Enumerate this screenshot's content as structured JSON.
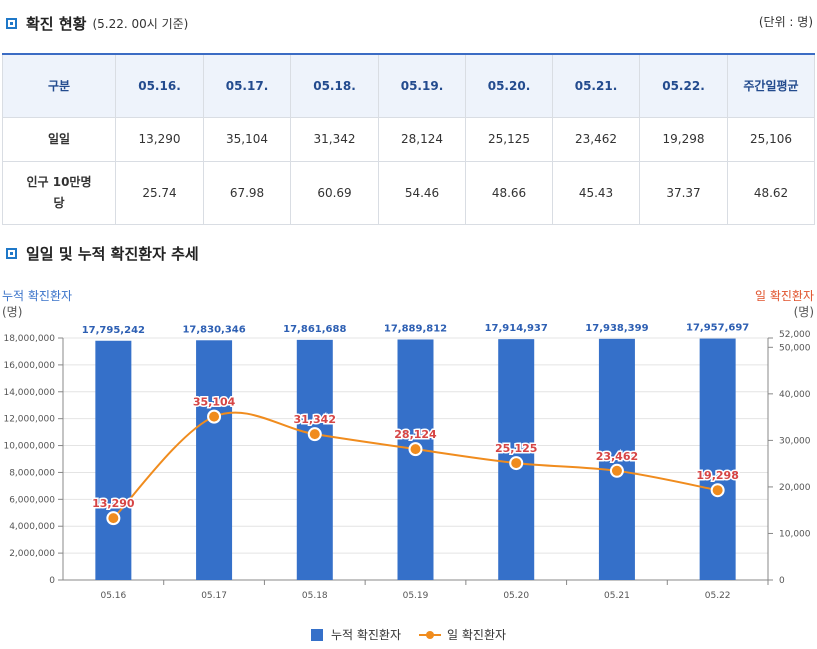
{
  "header": {
    "title": "확진 현황",
    "subtitle": "(5.22. 00시 기준)",
    "unit": "(단위 : 명)"
  },
  "table": {
    "columns": [
      "구분",
      "05.16.",
      "05.17.",
      "05.18.",
      "05.19.",
      "05.20.",
      "05.21.",
      "05.22.",
      "주간일평균"
    ],
    "rows": [
      {
        "label": "일일",
        "values": [
          "13,290",
          "35,104",
          "31,342",
          "28,124",
          "25,125",
          "23,462",
          "19,298",
          "25,106"
        ]
      },
      {
        "label": "인구 10만명당",
        "values": [
          "25.74",
          "67.98",
          "60.69",
          "54.46",
          "48.66",
          "45.43",
          "37.37",
          "48.62"
        ]
      }
    ]
  },
  "chart_section": {
    "title": "일일 및 누적 확진환자 추세"
  },
  "colors": {
    "bar": "#3570c9",
    "line": "#f08c1e",
    "left_axis_title": "#3a73c9",
    "right_axis_title": "#e0522b",
    "bar_label": "#2d5fb3",
    "line_label": "#d64545"
  },
  "chart_data": {
    "type": "bar",
    "title": "일일 및 누적 확진환자 추세",
    "categories": [
      "05.16",
      "05.17",
      "05.18",
      "05.19",
      "05.20",
      "05.21",
      "05.22"
    ],
    "series": [
      {
        "name": "누적 확진환자",
        "type": "bar",
        "axis": "left",
        "values": [
          17795242,
          17830346,
          17861688,
          17889812,
          17914937,
          17938399,
          17957697
        ],
        "labels": [
          "17,795,242",
          "17,830,346",
          "17,861,688",
          "17,889,812",
          "17,914,937",
          "17,938,399",
          "17,957,697"
        ]
      },
      {
        "name": "일 확진환자",
        "type": "line",
        "axis": "right",
        "values": [
          13290,
          35104,
          31342,
          28124,
          25125,
          23462,
          19298
        ],
        "labels": [
          "13,290",
          "35,104",
          "31,342",
          "28,124",
          "25,125",
          "23,462",
          "19,298"
        ]
      }
    ],
    "left_axis": {
      "title": "누적 확진환자",
      "unit": "(명)",
      "ylim": [
        0,
        18000000
      ],
      "ticks": [
        0,
        2000000,
        4000000,
        6000000,
        8000000,
        10000000,
        12000000,
        14000000,
        16000000,
        18000000
      ],
      "tick_labels": [
        "0",
        "2,000,000",
        "4,000,000",
        "6,000,000",
        "8,000,000",
        "10,000,000",
        "12,000,000",
        "14,000,000",
        "16,000,000",
        "18,000,000"
      ]
    },
    "right_axis": {
      "title": "일 확진환자",
      "unit": "(명)",
      "ylim": [
        0,
        52000
      ],
      "ticks": [
        0,
        10000,
        20000,
        30000,
        40000,
        50000,
        52000
      ],
      "tick_labels": [
        "0",
        "10,000",
        "20,000",
        "30,000",
        "40,000",
        "50,000",
        "52,000"
      ]
    },
    "legend": [
      "누적 확진환자",
      "일 확진환자"
    ],
    "legend_position": "bottom",
    "grid": true
  }
}
